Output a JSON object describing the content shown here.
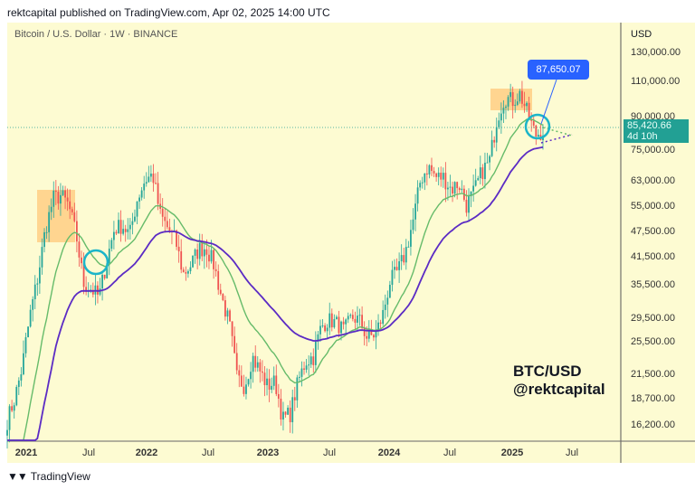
{
  "header": {
    "published": "rektcapital published on TradingView.com, Apr 02, 2025 14:00 UTC"
  },
  "chart_data": {
    "type": "candlestick",
    "symbol": "Bitcoin / U.S. Dollar · 1W · BINANCE",
    "currency": "USD",
    "y_scale": "log",
    "y_ticks": [
      "130,000.00",
      "110,000.00",
      "90,000.00",
      "75,000.00",
      "63,000.00",
      "55,000.00",
      "47,500.00",
      "41,500.00",
      "35,500.00",
      "29,500.00",
      "25,500.00",
      "21,500.00",
      "18,700.00",
      "16,200.00"
    ],
    "x_ticks": [
      "2021",
      "Jul",
      "2022",
      "Jul",
      "2023",
      "Jul",
      "2024",
      "Jul",
      "2025",
      "Jul"
    ],
    "approx_weekly_close_path": [
      [
        "2020-12",
        16500
      ],
      [
        "2021-01",
        18700
      ],
      [
        "2021-01",
        22500
      ],
      [
        "2021-02",
        30000
      ],
      [
        "2021-02",
        37000
      ],
      [
        "2021-03",
        48000
      ],
      [
        "2021-03",
        57000
      ],
      [
        "2021-04",
        58000
      ],
      [
        "2021-05",
        55000
      ],
      [
        "2021-06",
        46500
      ],
      [
        "2021-06",
        35500
      ],
      [
        "2021-07",
        34500
      ],
      [
        "2021-07",
        33000
      ],
      [
        "2021-08",
        40500
      ],
      [
        "2021-09",
        48000
      ],
      [
        "2021-09",
        49000
      ],
      [
        "2021-10",
        46500
      ],
      [
        "2021-10",
        57000
      ],
      [
        "2021-11",
        63000
      ],
      [
        "2021-11",
        65000
      ],
      [
        "2021-12",
        52000
      ],
      [
        "2021-12",
        48000
      ],
      [
        "2022-01",
        45000
      ],
      [
        "2022-01",
        37500
      ],
      [
        "2022-02",
        39500
      ],
      [
        "2022-03",
        43000
      ],
      [
        "2022-04",
        43500
      ],
      [
        "2022-04",
        39500
      ],
      [
        "2022-05",
        33000
      ],
      [
        "2022-06",
        28500
      ],
      [
        "2022-06",
        21000
      ],
      [
        "2022-07",
        20000
      ],
      [
        "2022-08",
        23500
      ],
      [
        "2022-09",
        21800
      ],
      [
        "2022-10",
        20000
      ],
      [
        "2022-11",
        20500
      ],
      [
        "2022-11",
        16600
      ],
      [
        "2022-12",
        17200
      ],
      [
        "2023-01",
        20500
      ],
      [
        "2023-02",
        23000
      ],
      [
        "2023-02",
        23500
      ],
      [
        "2023-03",
        27800
      ],
      [
        "2023-04",
        29000
      ],
      [
        "2023-05",
        28500
      ],
      [
        "2023-06",
        27200
      ],
      [
        "2023-07",
        29500
      ],
      [
        "2023-07",
        29000
      ],
      [
        "2023-08",
        26000
      ],
      [
        "2023-09",
        26500
      ],
      [
        "2023-10",
        29500
      ],
      [
        "2023-10",
        36000
      ],
      [
        "2023-11",
        38000
      ],
      [
        "2024-01",
        42000
      ],
      [
        "2024-02",
        50000
      ],
      [
        "2024-02",
        63000
      ],
      [
        "2024-03",
        68000
      ],
      [
        "2024-04",
        64000
      ],
      [
        "2024-05",
        64000
      ],
      [
        "2024-06",
        60000
      ],
      [
        "2024-07",
        62000
      ],
      [
        "2024-08",
        55000
      ],
      [
        "2024-09",
        59000
      ],
      [
        "2024-10",
        66000
      ],
      [
        "2024-10",
        70000
      ],
      [
        "2024-11",
        89000
      ],
      [
        "2024-12",
        100000
      ],
      [
        "2025-01",
        98000
      ],
      [
        "2025-01",
        102000
      ],
      [
        "2025-02",
        91000
      ],
      [
        "2025-03",
        81000
      ],
      [
        "2025-04",
        83000
      ]
    ],
    "moving_averages": [
      {
        "color": "#66bb6a"
      },
      {
        "color": "#5b2bc4"
      }
    ],
    "last_price": "85,420.66",
    "countdown": "4d 10h",
    "callout": "87,650.07",
    "colors": {
      "up": "#26a69a",
      "down": "#ef5350",
      "highlight": "#ffcc80",
      "circle": "#1cb5c9",
      "callout": "#2962ff",
      "last_price_bg": "#22a094"
    }
  },
  "watermark": {
    "line1": "BTC/USD",
    "line2": "@rektcapital"
  },
  "footer": {
    "logo": "17",
    "brand": "TradingView"
  }
}
